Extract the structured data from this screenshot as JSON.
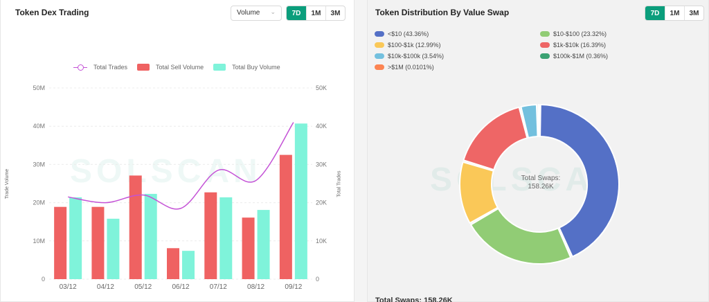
{
  "left_card": {
    "title": "Token Dex Trading",
    "select": {
      "value": "Volume",
      "chevron": "chevron-down-icon"
    },
    "timeframes": [
      "7D",
      "1M",
      "3M"
    ],
    "active_timeframe": "7D",
    "watermark": "SOLSCAN"
  },
  "chart_data": {
    "type": "bar",
    "categories": [
      "03/12",
      "04/12",
      "05/12",
      "06/12",
      "07/12",
      "08/12",
      "09/12"
    ],
    "series": [
      {
        "name": "Total Trades",
        "kind": "line",
        "axis": "right",
        "color": "#c452d6",
        "values": [
          21500,
          20000,
          22000,
          18500,
          28500,
          25800,
          41000
        ]
      },
      {
        "name": "Total Sell Volume",
        "kind": "bar",
        "axis": "left",
        "color": "#ef6262",
        "values": [
          18900000,
          18900000,
          27100000,
          8100000,
          22700000,
          16100000,
          32500000
        ]
      },
      {
        "name": "Total Buy Volume",
        "kind": "bar",
        "axis": "left",
        "color": "#7ff3da",
        "values": [
          21400000,
          15800000,
          22300000,
          7400000,
          21400000,
          18100000,
          40700000
        ]
      }
    ],
    "ylabel": "Trade Volume",
    "ylabel_right": "Total Trades",
    "ylim": [
      0,
      50000000
    ],
    "ylim_right": [
      0,
      50000
    ],
    "yticks": [
      "0",
      "10M",
      "20M",
      "30M",
      "40M",
      "50M"
    ],
    "yticks_right": [
      "0",
      "10K",
      "20K",
      "30K",
      "40K",
      "50K"
    ],
    "legend_position": "top"
  },
  "right_card": {
    "title": "Token Distribution By Value Swap",
    "timeframes": [
      "7D",
      "1M",
      "3M"
    ],
    "active_timeframe": "7D",
    "watermark": "SOLSCAN",
    "center_label": "Total Swaps:",
    "center_value": "158.26K",
    "bottom_partial": "Total Swaps: 158.26K",
    "legend": [
      {
        "label": "<$10 (43.36%)",
        "color": "#5470c6",
        "value": 43.36
      },
      {
        "label": "$10-$100 (23.32%)",
        "color": "#91cc75",
        "value": 23.32
      },
      {
        "label": "$100-$1k (12.99%)",
        "color": "#fac858",
        "value": 12.99
      },
      {
        "label": "$1k-$10k (16.39%)",
        "color": "#ee6666",
        "value": 16.39
      },
      {
        "label": "$10k-$100k (3.54%)",
        "color": "#73c0de",
        "value": 3.54
      },
      {
        "label": "$100k-$1M (0.36%)",
        "color": "#3ba272",
        "value": 0.36
      },
      {
        "label": ">$1M (0.0101%)",
        "color": "#fc8452",
        "value": 0.0101
      }
    ]
  }
}
